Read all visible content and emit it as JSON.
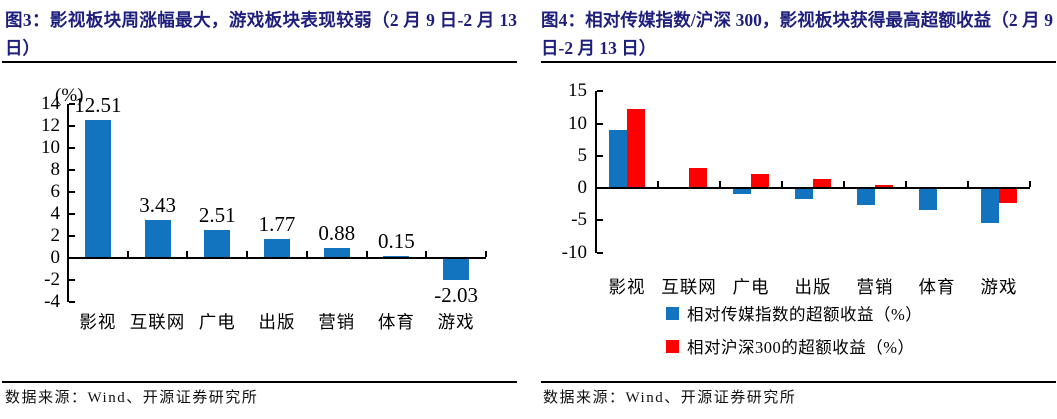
{
  "colors": {
    "title": "#1E1E7D",
    "bar_blue": "#1274BE",
    "bar_red": "#FF0000",
    "axis": "#000000"
  },
  "panels": [
    {
      "id": "fig3",
      "title": "图3：影视板块周涨幅最大，游戏板块表现较弱（2 月 9 日-2 月 13 日）",
      "source": "数据来源：Wind、开源证券研究所"
    },
    {
      "id": "fig4",
      "title": "图4：相对传媒指数/沪深 300，影视板块获得最高超额收益（2 月 9 日-2 月 13 日）",
      "source": "数据来源：Wind、开源证券研究所"
    }
  ],
  "chart_data": [
    {
      "type": "bar",
      "title": "影视板块周涨幅最大，游戏板块表现较弱（2 月 9 日-2 月 13 日）",
      "unit_label": "(%)",
      "categories": [
        "影视",
        "互联网",
        "广电",
        "出版",
        "营销",
        "体育",
        "游戏"
      ],
      "values": [
        12.51,
        3.43,
        2.51,
        1.77,
        0.88,
        0.15,
        -2.03
      ],
      "data_labels": [
        "12.51",
        "3.43",
        "2.51",
        "1.77",
        "0.88",
        "0.15",
        "-2.03"
      ],
      "bar_color": "#1274BE",
      "ylim": [
        -4,
        14
      ],
      "yticks": [
        14,
        12,
        10,
        8,
        6,
        4,
        2,
        0,
        -2,
        -4
      ],
      "grid": false,
      "legend": null
    },
    {
      "type": "grouped-bar",
      "title": "相对传媒指数/沪深 300，影视板块获得最高超额收益（2 月 9 日-2 月 13 日）",
      "categories": [
        "影视",
        "互联网",
        "广电",
        "出版",
        "营销",
        "体育",
        "游戏"
      ],
      "series": [
        {
          "name": "相对传媒指数的超额收益（%）",
          "color": "#1274BE",
          "values": [
            9.0,
            -0.1,
            -1.0,
            -1.7,
            -2.6,
            -3.4,
            -5.5
          ]
        },
        {
          "name": "相对沪深300的超额收益（%）",
          "color": "#FF0000",
          "values": [
            12.2,
            3.1,
            2.1,
            1.4,
            0.5,
            -0.2,
            -2.3
          ]
        }
      ],
      "ylim": [
        -10,
        15
      ],
      "yticks": [
        15,
        10,
        5,
        0,
        -5,
        -10
      ],
      "grid": false,
      "legend_position": "bottom"
    }
  ]
}
